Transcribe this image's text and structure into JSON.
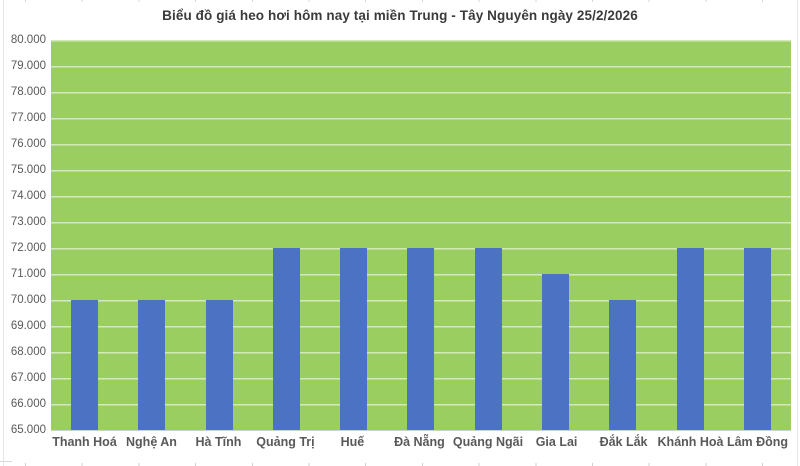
{
  "chart_data": {
    "type": "bar",
    "title": "Biểu đồ giá heo hơi hôm nay tại miền Trung - Tây Nguyên ngày 25/2/2026",
    "categories": [
      "Thanh Hoá",
      "Nghệ An",
      "Hà Tĩnh",
      "Quảng Trị",
      "Huế",
      "Đà Nẵng",
      "Quảng Ngãi",
      "Gia Lai",
      "Đắk Lắk",
      "Khánh Hoà",
      "Lâm Đồng"
    ],
    "values": [
      70000,
      70000,
      70000,
      72000,
      72000,
      72000,
      72000,
      71000,
      70000,
      72000,
      72000
    ],
    "xlabel": "",
    "ylabel": "",
    "ylim": [
      65000,
      80000
    ],
    "ytick_step": 1000,
    "ytick_labels_top_to_bottom": [
      "80.000",
      "79.000",
      "78.000",
      "77.000",
      "76.000",
      "75.000",
      "74.000",
      "73.000",
      "72.000",
      "71.000",
      "70.000",
      "69.000",
      "68.000",
      "67.000",
      "66.000",
      "65.000"
    ],
    "grid": true,
    "legend": "none",
    "colors": {
      "bar": "#4C73C3",
      "plot_background": "#9BCE61",
      "gridline_overlay": "rgba(255,255,255,0.55)",
      "axis_text": "#595959",
      "title_text": "#3B3B3B"
    }
  }
}
